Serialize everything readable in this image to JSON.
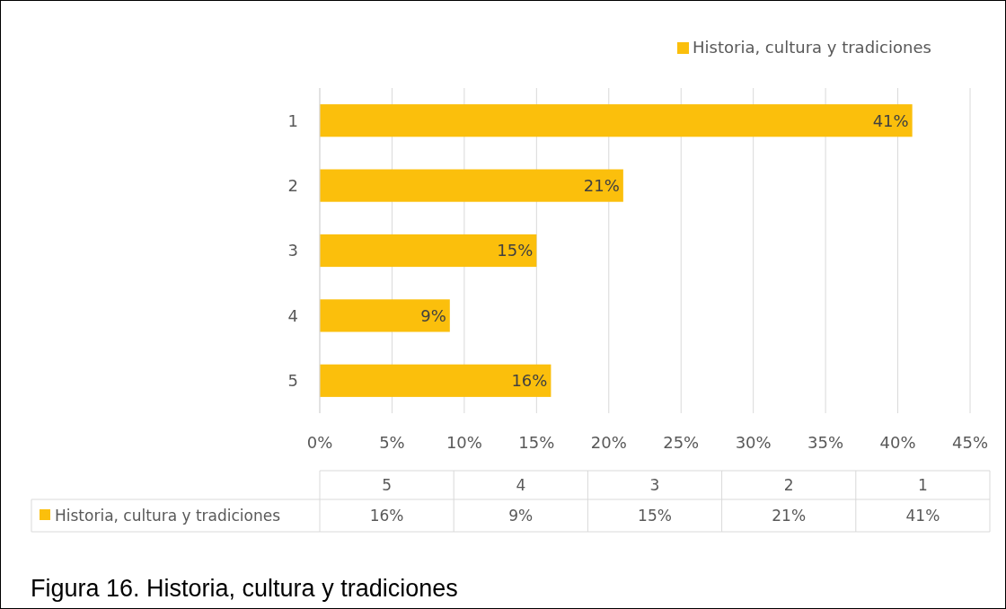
{
  "chart_data": {
    "type": "bar",
    "orientation": "horizontal",
    "categories": [
      "1",
      "2",
      "3",
      "4",
      "5"
    ],
    "series": [
      {
        "name": "Historia, cultura y tradiciones",
        "color": "#fbbf0c",
        "values": [
          41,
          21,
          15,
          9,
          16
        ],
        "value_labels": [
          "41%",
          "21%",
          "15%",
          "9%",
          "16%"
        ]
      }
    ],
    "xlim": [
      0,
      45
    ],
    "xticks": [
      {
        "value": 0,
        "label": "0%"
      },
      {
        "value": 5,
        "label": "5%"
      },
      {
        "value": 10,
        "label": "10%"
      },
      {
        "value": 15,
        "label": "15%"
      },
      {
        "value": 20,
        "label": "20%"
      },
      {
        "value": 25,
        "label": "25%"
      },
      {
        "value": 30,
        "label": "30%"
      },
      {
        "value": 35,
        "label": "35%"
      },
      {
        "value": 40,
        "label": "40%"
      },
      {
        "value": 45,
        "label": "45%"
      }
    ],
    "grid": "x",
    "legend": "top right",
    "annotations": [
      "Figura 16. Historia, cultura y tradiciones"
    ]
  }
}
